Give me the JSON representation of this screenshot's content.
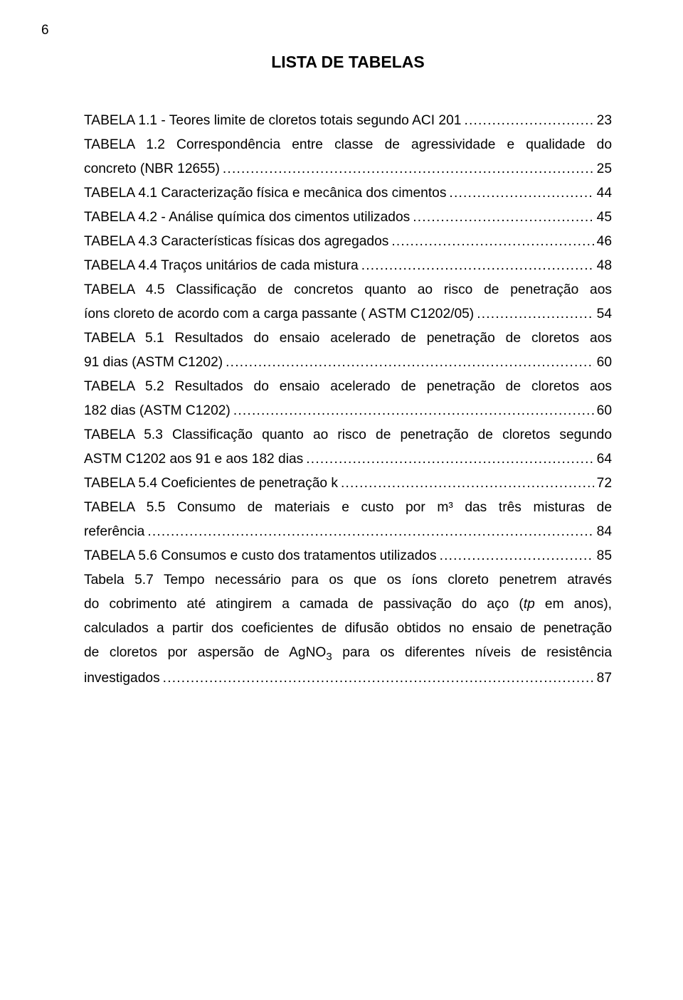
{
  "pageNumber": "6",
  "title": "LISTA DE TABELAS",
  "entries": [
    {
      "lines": [
        "TABELA 1.1 - Teores limite de cloretos totais segundo ACI 201"
      ],
      "page": "23"
    },
    {
      "lines": [
        "TABELA 1.2 Correspondência entre classe de agressividade e qualidade do",
        "concreto (NBR 12655)"
      ],
      "page": "25"
    },
    {
      "lines": [
        "TABELA 4.1 Caracterização física e mecânica dos cimentos"
      ],
      "page": "44"
    },
    {
      "lines": [
        "TABELA 4.2 - Análise química dos cimentos utilizados"
      ],
      "page": "45"
    },
    {
      "lines": [
        "TABELA 4.3 Características físicas dos agregados"
      ],
      "page": "46"
    },
    {
      "lines": [
        "TABELA 4.4 Traços unitários de cada mistura"
      ],
      "page": "48"
    },
    {
      "lines": [
        "TABELA 4.5 Classificação de concretos quanto ao risco de penetração aos",
        "íons cloreto de acordo com a carga passante ( ASTM C1202/05)"
      ],
      "page": "54"
    },
    {
      "lines": [
        "TABELA 5.1 Resultados do ensaio acelerado de penetração de cloretos aos",
        "91 dias (ASTM C1202)"
      ],
      "page": "60"
    },
    {
      "lines": [
        "TABELA 5.2 Resultados do ensaio acelerado de penetração de cloretos aos",
        "182 dias (ASTM C1202)"
      ],
      "page": "60"
    },
    {
      "lines": [
        "TABELA 5.3 Classificação quanto ao risco de penetração de cloretos segundo",
        "ASTM C1202 aos 91 e aos 182 dias"
      ],
      "page": "64"
    },
    {
      "lines": [
        "TABELA 5.4 Coeficientes de penetração k"
      ],
      "page": "72"
    },
    {
      "lines": [
        "TABELA 5.5 Consumo de materiais  e  custo  por m³ das três misturas de",
        "referência"
      ],
      "page": "84"
    },
    {
      "lines": [
        "TABELA 5.6 Consumos e custo dos tratamentos utilizados"
      ],
      "page": "85"
    },
    {
      "lines": [
        "Tabela 5.7 Tempo necessário para os que os íons cloreto penetrem através",
        "do cobrimento até atingirem a camada de  passivação  do  aço  (tp  em  anos),",
        "calculados a partir dos coeficientes de difusão obtidos no ensaio de penetração",
        "de cloretos por aspersão de AgNO3   para  os  diferentes  níveis  de  resistência",
        "investigados"
      ],
      "page": "87",
      "italicTp": true,
      "sub3": true
    }
  ],
  "style": {
    "background": "#ffffff",
    "textColor": "#000000",
    "fontFamily": "Arial, Helvetica, sans-serif",
    "bodyFontSize": 19.2,
    "titleFontSize": 23,
    "lineHeight": 1.77,
    "pageWidth": 960,
    "pageHeight": 1406
  }
}
